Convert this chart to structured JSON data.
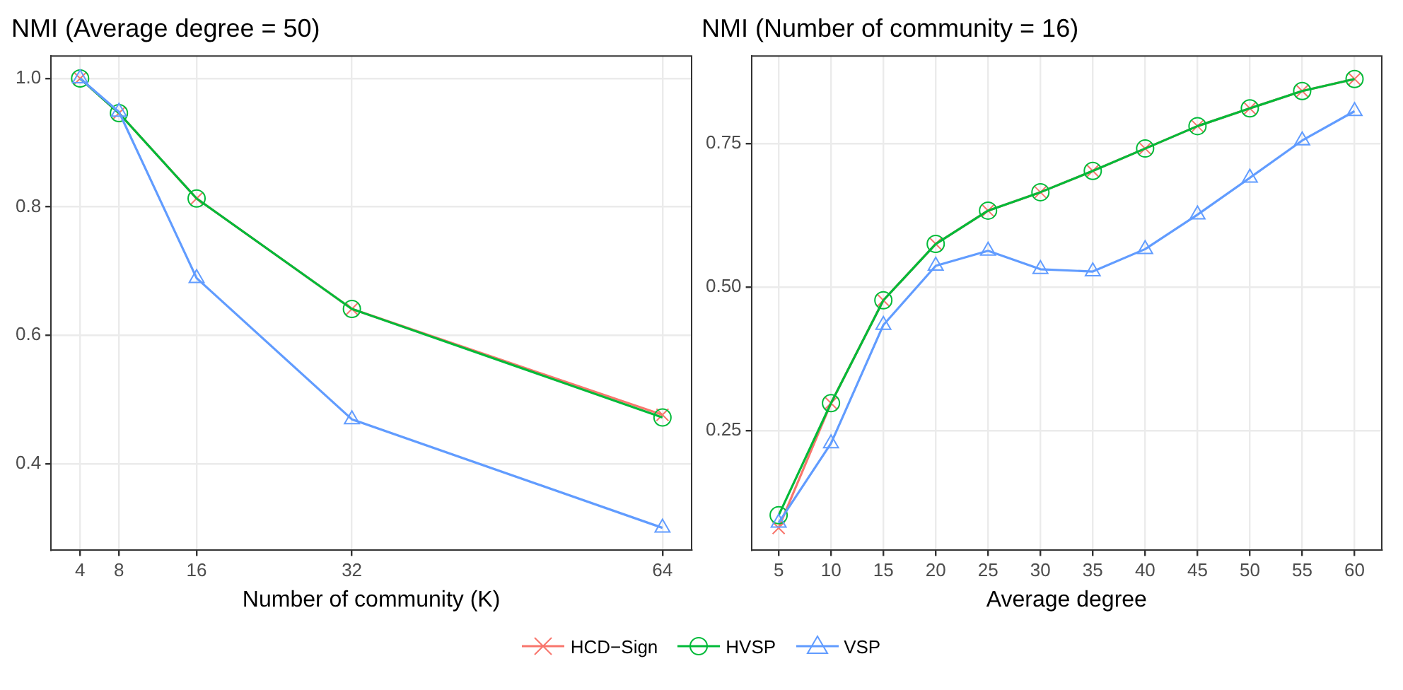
{
  "chart_data": [
    {
      "type": "line",
      "title": "NMI (Average degree = 50)",
      "xlabel": "Number of community (K)",
      "x": [
        4,
        8,
        16,
        32,
        64
      ],
      "xlim": [
        1,
        67
      ],
      "xticks": [
        4,
        8,
        16,
        32,
        64
      ],
      "ylim": [
        0.265,
        1.035
      ],
      "yticks": [
        {
          "value": 0.4,
          "label": "0.4"
        },
        {
          "value": 0.6,
          "label": "0.6"
        },
        {
          "value": 0.8,
          "label": "0.8"
        },
        {
          "value": 1.0,
          "label": "1.0"
        }
      ],
      "grid": true,
      "legend": "bottom",
      "line_style": "solid",
      "series": [
        {
          "name": "HCD−Sign",
          "color": "#f8766d",
          "marker": "cross",
          "values": [
            1.0,
            0.946,
            0.813,
            0.641,
            0.476
          ]
        },
        {
          "name": "HVSP",
          "color": "#00ba38",
          "marker": "circle",
          "values": [
            1.0,
            0.946,
            0.813,
            0.641,
            0.472
          ]
        },
        {
          "name": "VSP",
          "color": "#619cff",
          "marker": "triangle",
          "values": [
            1.0,
            0.948,
            0.689,
            0.469,
            0.3
          ]
        }
      ]
    },
    {
      "type": "line",
      "title": "NMI (Number of community = 16)",
      "xlabel": "Average degree",
      "x": [
        5,
        10,
        15,
        20,
        25,
        30,
        35,
        40,
        45,
        50,
        55,
        60
      ],
      "xlim": [
        2.4,
        62.6
      ],
      "xticks": [
        5,
        10,
        15,
        20,
        25,
        30,
        35,
        40,
        45,
        50,
        55,
        60
      ],
      "ylim": [
        0.042,
        0.902
      ],
      "yticks": [
        0.25,
        {
          "value": 0.5,
          "label": "0.50"
        },
        0.75
      ],
      "grid": true,
      "line_style": "solid",
      "series": [
        {
          "color": "#f8766d",
          "marker": "cross",
          "values": [
            0.081,
            0.298,
            0.477,
            0.575,
            0.633,
            0.665,
            0.702,
            0.741,
            0.78,
            0.811,
            0.841,
            0.862
          ]
        },
        {
          "color": "#00ba38",
          "marker": "circle",
          "values": [
            0.103,
            0.298,
            0.477,
            0.575,
            0.633,
            0.665,
            0.702,
            0.741,
            0.78,
            0.811,
            0.841,
            0.862
          ]
        },
        {
          "color": "#619cff",
          "marker": "triangle",
          "values": [
            0.09,
            0.228,
            0.434,
            0.537,
            0.563,
            0.531,
            0.527,
            0.566,
            0.626,
            0.69,
            0.755,
            0.806
          ]
        }
      ]
    }
  ]
}
